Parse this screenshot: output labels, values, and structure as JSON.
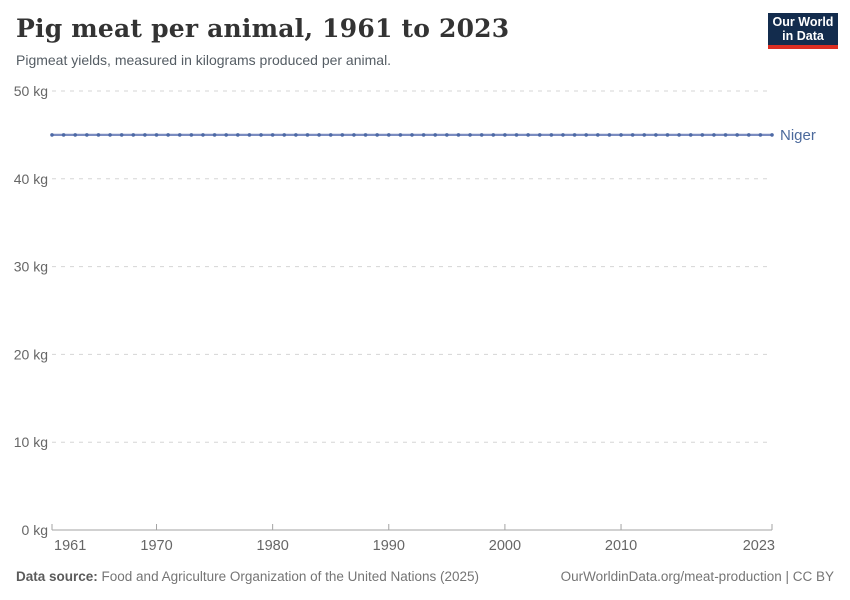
{
  "header": {
    "title": "Pig meat per animal, 1961 to 2023",
    "subtitle": "Pigmeat yields, measured in kilograms produced per animal.",
    "logo": {
      "line1": "Our World",
      "line2": "in Data",
      "bg_color": "#132c4d",
      "accent_color": "#dc2e22"
    }
  },
  "chart_data": {
    "type": "line",
    "title": "Pig meat per animal, 1961 to 2023",
    "xlabel": "",
    "ylabel": "kg",
    "xlim": [
      1961,
      2023
    ],
    "ylim": [
      0,
      50
    ],
    "x_ticks": [
      1961,
      1970,
      1980,
      1990,
      2000,
      2010,
      2023
    ],
    "y_ticks": [
      0,
      10,
      20,
      30,
      40,
      50
    ],
    "y_tick_suffix": " kg",
    "grid": "horizontal-dashed",
    "legend_position": "end-of-line-label",
    "colors": {
      "line": "#7b8cc0",
      "marker": "#4d69a5",
      "series_label": "#4c6a9c",
      "gridline": "#d5d5d5",
      "axis": "#a3a3a3",
      "tick_label": "#666666"
    },
    "series": [
      {
        "name": "Niger",
        "x": [
          1961,
          1962,
          1963,
          1964,
          1965,
          1966,
          1967,
          1968,
          1969,
          1970,
          1971,
          1972,
          1973,
          1974,
          1975,
          1976,
          1977,
          1978,
          1979,
          1980,
          1981,
          1982,
          1983,
          1984,
          1985,
          1986,
          1987,
          1988,
          1989,
          1990,
          1991,
          1992,
          1993,
          1994,
          1995,
          1996,
          1997,
          1998,
          1999,
          2000,
          2001,
          2002,
          2003,
          2004,
          2005,
          2006,
          2007,
          2008,
          2009,
          2010,
          2011,
          2012,
          2013,
          2014,
          2015,
          2016,
          2017,
          2018,
          2019,
          2020,
          2021,
          2022,
          2023
        ],
        "values": [
          45,
          45,
          45,
          45,
          45,
          45,
          45,
          45,
          45,
          45,
          45,
          45,
          45,
          45,
          45,
          45,
          45,
          45,
          45,
          45,
          45,
          45,
          45,
          45,
          45,
          45,
          45,
          45,
          45,
          45,
          45,
          45,
          45,
          45,
          45,
          45,
          45,
          45,
          45,
          45,
          45,
          45,
          45,
          45,
          45,
          45,
          45,
          45,
          45,
          45,
          45,
          45,
          45,
          45,
          45,
          45,
          45,
          45,
          45,
          45,
          45,
          45,
          45
        ]
      }
    ]
  },
  "footer": {
    "source_label": "Data source:",
    "source_text": " Food and Agriculture Organization of the United Nations (2025)",
    "credit": "OurWorldinData.org/meat-production | CC BY"
  }
}
